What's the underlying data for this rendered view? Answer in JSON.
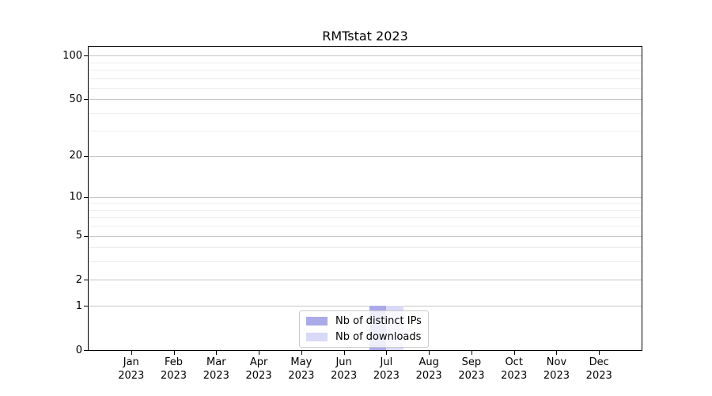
{
  "chart_data": {
    "type": "bar",
    "title": "RMTstat 2023",
    "categories": [
      "Jan",
      "Feb",
      "Mar",
      "Apr",
      "May",
      "Jun",
      "Jul",
      "Aug",
      "Sep",
      "Oct",
      "Nov",
      "Dec"
    ],
    "xtick_year": "2023",
    "series": [
      {
        "name": "Nb of distinct IPs",
        "color": "#aaaae9",
        "values": [
          0,
          0,
          0,
          0,
          0,
          0,
          1,
          0,
          0,
          0,
          0,
          0
        ]
      },
      {
        "name": "Nb of downloads",
        "color": "#d9d9f8",
        "values": [
          0,
          0,
          0,
          0,
          0,
          0,
          1,
          0,
          0,
          0,
          0,
          0
        ]
      }
    ],
    "yscale": "log1p",
    "ylim": [
      0,
      115
    ],
    "yticks_major": [
      0,
      1,
      2,
      5,
      10,
      20,
      50,
      100
    ],
    "yticks_minor": [
      3,
      4,
      6,
      7,
      8,
      9,
      30,
      40,
      60,
      70,
      80,
      90
    ],
    "grid": "horizontal",
    "legend_position": "lower center",
    "colors": {
      "grid_major": "#c6c6c6",
      "grid_minor": "#ededed",
      "spine": "#000000",
      "background": "#ffffff"
    }
  }
}
